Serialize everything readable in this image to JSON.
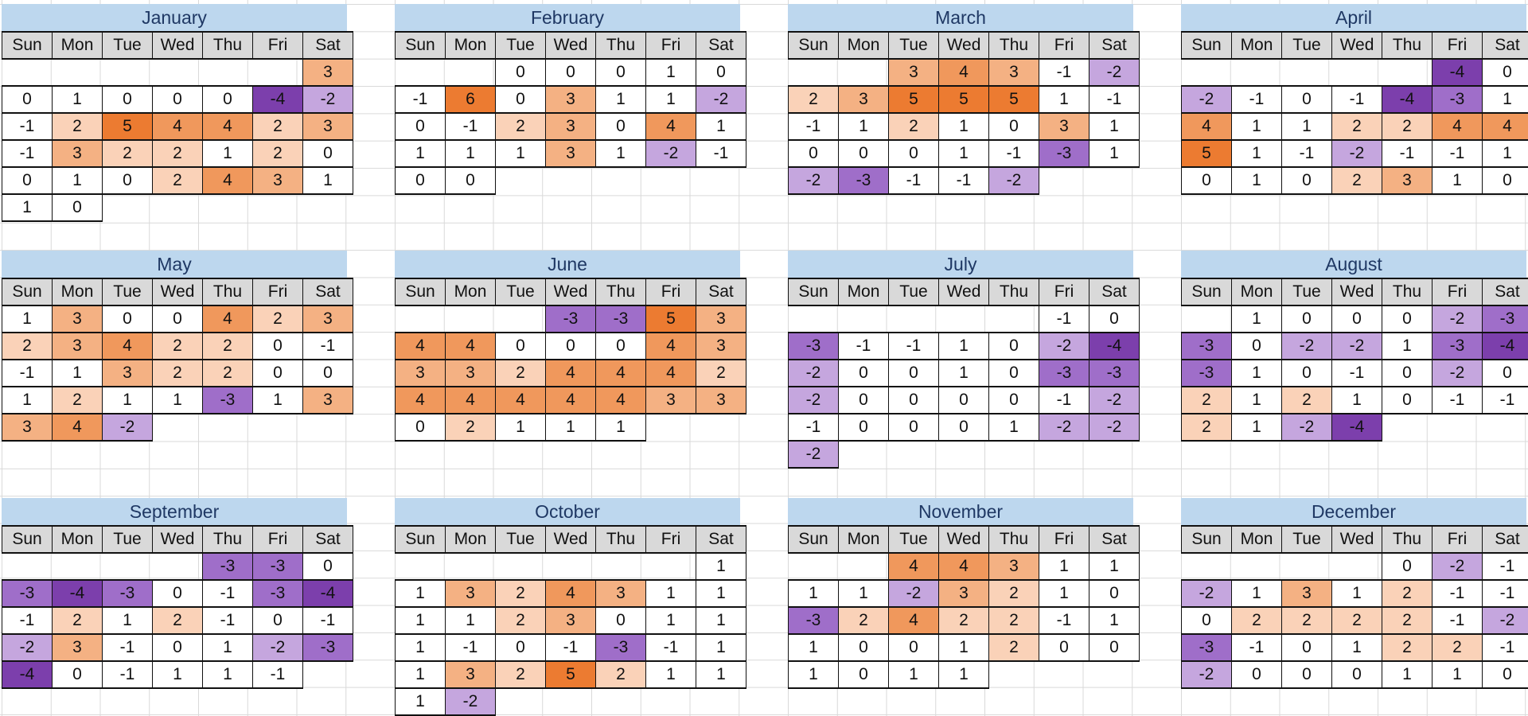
{
  "colors": {
    "month_title_bg": "#BDD7EE",
    "month_title_text": "#1F3864",
    "weekday_header_bg": "#D9D9D9",
    "cell_border": "#111111",
    "grid_line": "#D9D9D9",
    "value_fills": {
      "-4": "#7C3FAC",
      "-3": "#9F6EC9",
      "-2": "#C5A6DE",
      "-1": "#FFFFFF",
      "0": "#FFFFFF",
      "1": "#FFFFFF",
      "2": "#FAD2B8",
      "3": "#F4B183",
      "4": "#F0985C",
      "5": "#EC7B31",
      "6": "#EC7B31"
    }
  },
  "chart_data": {
    "type": "heatmap",
    "layout_hint": "12 monthly calendar heatmaps in a 4x3 grid; orange = positive values, purple = negative values, white = -1..1",
    "value_range": [
      -4,
      6
    ],
    "day_headers": [
      "Sun",
      "Mon",
      "Tue",
      "Wed",
      "Thu",
      "Fri",
      "Sat"
    ],
    "months": [
      {
        "name": "January",
        "weeks": [
          [
            null,
            null,
            null,
            null,
            null,
            null,
            3
          ],
          [
            0,
            1,
            0,
            0,
            0,
            -4,
            -2
          ],
          [
            -1,
            2,
            5,
            4,
            4,
            2,
            3
          ],
          [
            -1,
            3,
            2,
            2,
            1,
            2,
            0
          ],
          [
            0,
            1,
            0,
            2,
            4,
            3,
            1
          ],
          [
            1,
            0,
            null,
            null,
            null,
            null,
            null
          ]
        ]
      },
      {
        "name": "February",
        "weeks": [
          [
            null,
            null,
            0,
            0,
            0,
            1,
            0
          ],
          [
            -1,
            6,
            0,
            3,
            1,
            1,
            -2
          ],
          [
            0,
            -1,
            2,
            3,
            0,
            4,
            1
          ],
          [
            1,
            1,
            1,
            3,
            1,
            -2,
            -1
          ],
          [
            0,
            0,
            null,
            null,
            null,
            null,
            null
          ]
        ]
      },
      {
        "name": "March",
        "weeks": [
          [
            null,
            null,
            3,
            4,
            3,
            -1,
            -2
          ],
          [
            2,
            3,
            5,
            5,
            5,
            1,
            -1
          ],
          [
            -1,
            1,
            2,
            1,
            0,
            3,
            1
          ],
          [
            0,
            0,
            0,
            1,
            -1,
            -3,
            1
          ],
          [
            -2,
            -3,
            -1,
            -1,
            -2,
            null,
            null
          ]
        ]
      },
      {
        "name": "April",
        "weeks": [
          [
            null,
            null,
            null,
            null,
            null,
            -4,
            0
          ],
          [
            -2,
            -1,
            0,
            -1,
            -4,
            -3,
            1
          ],
          [
            4,
            1,
            1,
            2,
            2,
            4,
            4
          ],
          [
            5,
            1,
            -1,
            -2,
            -1,
            -1,
            1
          ],
          [
            0,
            1,
            0,
            2,
            3,
            1,
            0
          ]
        ]
      },
      {
        "name": "May",
        "weeks": [
          [
            1,
            3,
            0,
            0,
            4,
            2,
            3
          ],
          [
            2,
            3,
            4,
            2,
            2,
            0,
            -1
          ],
          [
            -1,
            1,
            3,
            2,
            2,
            0,
            0
          ],
          [
            1,
            2,
            1,
            1,
            -3,
            1,
            3
          ],
          [
            3,
            4,
            -2,
            null,
            null,
            null,
            null
          ]
        ]
      },
      {
        "name": "June",
        "weeks": [
          [
            null,
            null,
            null,
            -3,
            -3,
            5,
            3
          ],
          [
            4,
            4,
            0,
            0,
            0,
            4,
            3
          ],
          [
            3,
            3,
            2,
            4,
            4,
            4,
            2
          ],
          [
            4,
            4,
            4,
            4,
            4,
            3,
            3
          ],
          [
            0,
            2,
            1,
            1,
            1,
            null,
            null
          ]
        ]
      },
      {
        "name": "July",
        "weeks": [
          [
            null,
            null,
            null,
            null,
            null,
            -1,
            0
          ],
          [
            -3,
            -1,
            -1,
            1,
            0,
            -2,
            -4
          ],
          [
            -2,
            0,
            0,
            1,
            0,
            -3,
            -3
          ],
          [
            -2,
            0,
            0,
            0,
            0,
            -1,
            -2
          ],
          [
            -1,
            0,
            0,
            0,
            1,
            -2,
            -2
          ],
          [
            -2,
            null,
            null,
            null,
            null,
            null,
            null
          ]
        ]
      },
      {
        "name": "August",
        "weeks": [
          [
            null,
            1,
            0,
            0,
            0,
            -2,
            -3
          ],
          [
            -3,
            0,
            -2,
            -2,
            1,
            -3,
            -4
          ],
          [
            -3,
            1,
            0,
            -1,
            0,
            -2,
            0
          ],
          [
            2,
            1,
            2,
            1,
            0,
            -1,
            -1
          ],
          [
            2,
            1,
            -2,
            -4,
            null,
            null,
            null
          ]
        ]
      },
      {
        "name": "September",
        "weeks": [
          [
            null,
            null,
            null,
            null,
            -3,
            -3,
            0
          ],
          [
            -3,
            -4,
            -3,
            0,
            -1,
            -3,
            -4
          ],
          [
            -1,
            2,
            1,
            2,
            -1,
            0,
            -1
          ],
          [
            -2,
            3,
            -1,
            0,
            1,
            -2,
            -3
          ],
          [
            -4,
            0,
            -1,
            1,
            1,
            -1,
            null
          ]
        ]
      },
      {
        "name": "October",
        "weeks": [
          [
            null,
            null,
            null,
            null,
            null,
            null,
            1
          ],
          [
            1,
            3,
            2,
            4,
            3,
            1,
            1
          ],
          [
            1,
            1,
            2,
            3,
            0,
            1,
            1
          ],
          [
            1,
            -1,
            0,
            -1,
            -3,
            -1,
            1
          ],
          [
            1,
            3,
            2,
            5,
            2,
            1,
            1
          ],
          [
            1,
            -2,
            null,
            null,
            null,
            null,
            null
          ]
        ]
      },
      {
        "name": "November",
        "weeks": [
          [
            null,
            null,
            4,
            4,
            3,
            1,
            1
          ],
          [
            1,
            1,
            -2,
            3,
            2,
            1,
            0
          ],
          [
            -3,
            2,
            4,
            2,
            2,
            -1,
            1
          ],
          [
            1,
            0,
            0,
            1,
            2,
            0,
            0
          ],
          [
            1,
            0,
            1,
            1,
            null,
            null,
            null
          ]
        ]
      },
      {
        "name": "December",
        "weeks": [
          [
            null,
            null,
            null,
            null,
            0,
            -2,
            -1
          ],
          [
            -2,
            1,
            3,
            1,
            2,
            -1,
            -1
          ],
          [
            0,
            2,
            2,
            2,
            2,
            -1,
            -2
          ],
          [
            -3,
            -1,
            0,
            1,
            2,
            2,
            -1
          ],
          [
            -2,
            0,
            0,
            0,
            1,
            1,
            0
          ]
        ]
      }
    ]
  }
}
